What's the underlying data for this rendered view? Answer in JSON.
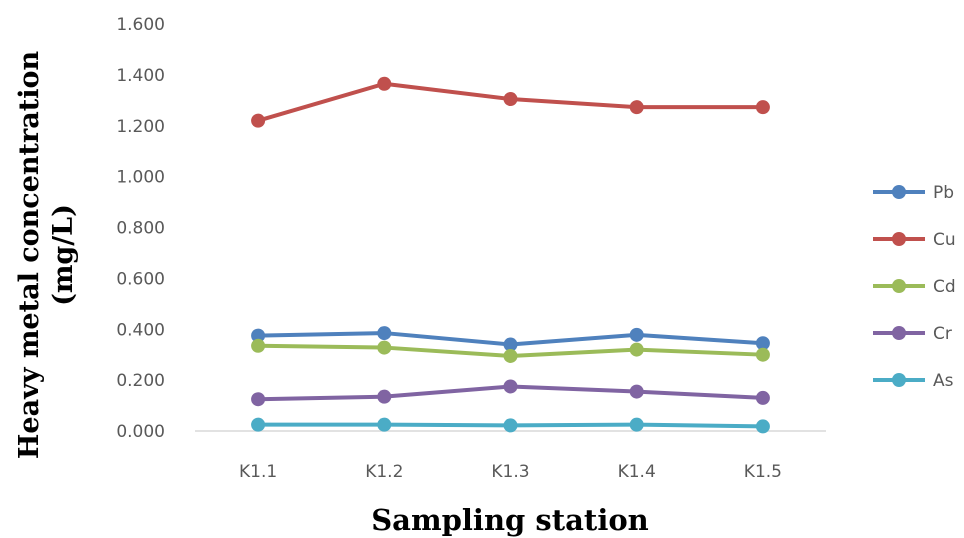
{
  "chart_data": {
    "type": "line",
    "title": "",
    "xlabel": "Sampling station",
    "ylabel_line1": "Heavy metal concentration",
    "ylabel_line2": "(mg/L)",
    "ylim": [
      0,
      1.6
    ],
    "ytick_step": 0.2,
    "ytick_labels": [
      "0.000",
      "0.200",
      "0.400",
      "0.600",
      "0.800",
      "1.000",
      "1.200",
      "1.400",
      "1.600"
    ],
    "categories": [
      "K1.1",
      "K1.2",
      "K1.3",
      "K1.4",
      "K1.5"
    ],
    "grid": false,
    "legend_position": "right",
    "series": [
      {
        "name": " Pb",
        "color": "#4F81BD",
        "values": [
          0.375,
          0.385,
          0.34,
          0.378,
          0.345
        ]
      },
      {
        "name": "Cu",
        "color": "#C0504D",
        "values": [
          1.22,
          1.365,
          1.305,
          1.273,
          1.273
        ]
      },
      {
        "name": "Cd",
        "color": "#9BBB59",
        "values": [
          0.335,
          0.328,
          0.295,
          0.32,
          0.3
        ]
      },
      {
        "name": "Cr",
        "color": "#8064A2",
        "values": [
          0.125,
          0.135,
          0.175,
          0.155,
          0.13
        ]
      },
      {
        "name": "As",
        "color": "#4BACC6",
        "values": [
          0.025,
          0.025,
          0.022,
          0.025,
          0.018
        ]
      }
    ]
  }
}
